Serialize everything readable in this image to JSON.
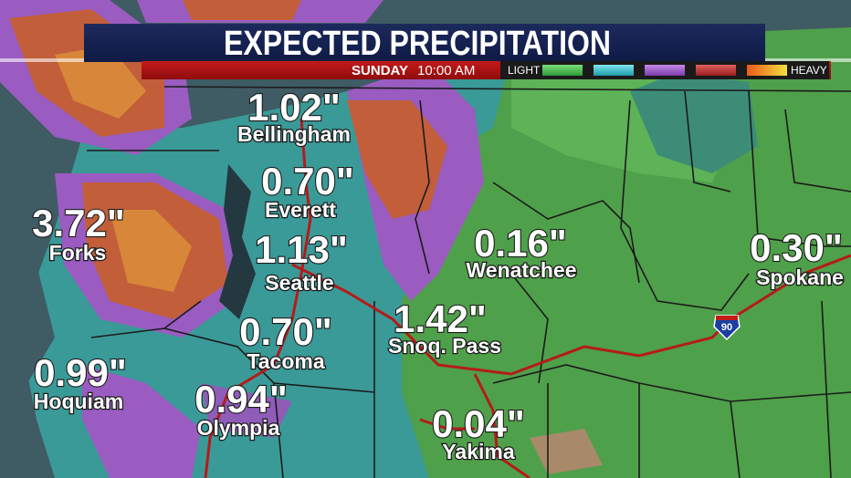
{
  "header": {
    "title": "EXPECTED PRECIPITATION",
    "day": "SUNDAY",
    "time": "10:00 AM"
  },
  "legend": {
    "low": "LIGHT",
    "high": "HEAVY"
  },
  "highway": "90",
  "cities": [
    {
      "name": "Bellingham",
      "amount": "1.02\""
    },
    {
      "name": "Everett",
      "amount": "0.70\""
    },
    {
      "name": "Forks",
      "amount": "3.72\""
    },
    {
      "name": "Seattle",
      "amount": "1.13\""
    },
    {
      "name": "Wenatchee",
      "amount": "0.16\""
    },
    {
      "name": "Spokane",
      "amount": "0.30\""
    },
    {
      "name": "Snoq. Pass",
      "amount": "1.42\""
    },
    {
      "name": "Tacoma",
      "amount": "0.70\""
    },
    {
      "name": "Hoquiam",
      "amount": "0.99\""
    },
    {
      "name": "Olympia",
      "amount": "0.94\""
    },
    {
      "name": "Yakima",
      "amount": "0.04\""
    }
  ]
}
